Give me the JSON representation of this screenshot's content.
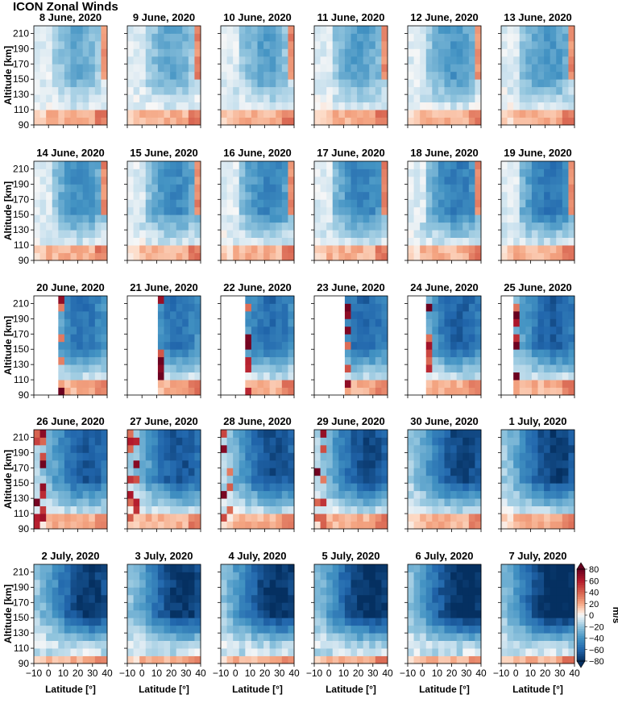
{
  "figure": {
    "title": "ICON Zonal Winds",
    "xlabel": "Latitude [°]",
    "ylabel": "Altitude [km]",
    "colorbar_label": "m/s",
    "colorbar_ticks": [
      80,
      60,
      40,
      20,
      0,
      -20,
      -40,
      -60,
      -80
    ],
    "colorbar_range": [
      -80,
      80
    ],
    "colorbar_extend": "both"
  },
  "chart_data": {
    "type": "heatmap",
    "layout": "small-multiples 5x6",
    "x_ticks": [
      -10,
      0,
      10,
      20,
      30,
      40
    ],
    "y_ticks": [
      90,
      110,
      130,
      150,
      170,
      190,
      210
    ],
    "xlim": [
      -10,
      40
    ],
    "ylim": [
      90,
      220
    ],
    "colormap": "RdBu_r",
    "panels": [
      {
        "title": "8 June, 2020",
        "coverage_start": -10
      },
      {
        "title": "9 June, 2020",
        "coverage_start": -10
      },
      {
        "title": "10 June, 2020",
        "coverage_start": -10
      },
      {
        "title": "11 June, 2020",
        "coverage_start": -10
      },
      {
        "title": "12 June, 2020",
        "coverage_start": -10
      },
      {
        "title": "13 June, 2020",
        "coverage_start": -10
      },
      {
        "title": "14 June, 2020",
        "coverage_start": -10
      },
      {
        "title": "15 June, 2020",
        "coverage_start": -10
      },
      {
        "title": "16 June, 2020",
        "coverage_start": -10
      },
      {
        "title": "17 June, 2020",
        "coverage_start": -10
      },
      {
        "title": "18 June, 2020",
        "coverage_start": -10
      },
      {
        "title": "19 June, 2020",
        "coverage_start": -10
      },
      {
        "title": "20 June, 2020",
        "coverage_start": -10
      },
      {
        "title": "21 June, 2020",
        "coverage_start": -10
      },
      {
        "title": "22 June, 2020",
        "coverage_start": -10
      },
      {
        "title": "23 June, 2020",
        "coverage_start": -10
      },
      {
        "title": "24 June, 2020",
        "coverage_start": -10
      },
      {
        "title": "25 June, 2020",
        "coverage_start": -10
      },
      {
        "title": "26 June, 2020",
        "coverage_start": -10
      },
      {
        "title": "27 June, 2020",
        "coverage_start": -10
      },
      {
        "title": "28 June, 2020",
        "coverage_start": -10
      },
      {
        "title": "29 June, 2020",
        "coverage_start": -10
      },
      {
        "title": "30 June, 2020",
        "coverage_start": -10
      },
      {
        "title": "1 July, 2020",
        "coverage_start": -10
      },
      {
        "title": "2 July, 2020",
        "coverage_start": -10
      },
      {
        "title": "3 July, 2020",
        "coverage_start": -10
      },
      {
        "title": "4 July, 2020",
        "coverage_start": -10
      },
      {
        "title": "5 July, 2020",
        "coverage_start": -10
      },
      {
        "title": "6 July, 2020",
        "coverage_start": -10
      },
      {
        "title": "7 July, 2020",
        "coverage_start": -10
      }
    ]
  }
}
